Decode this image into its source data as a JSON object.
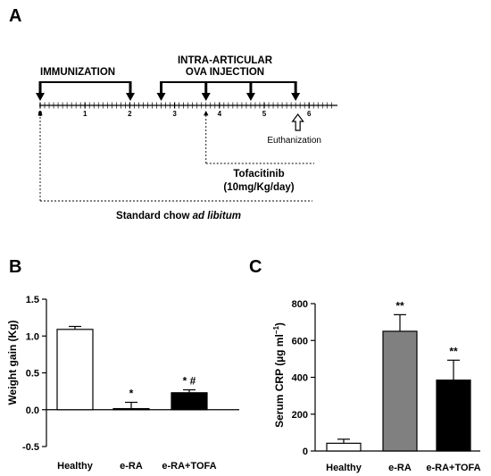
{
  "panelA": {
    "label": "A",
    "immunization": "IMMUNIZATION",
    "injection_line1": "INTRA-ARTICULAR",
    "injection_line2": "OVA INJECTION",
    "euthanization": "Euthanization",
    "tofacitinib_line1": "Tofacitinib",
    "tofacitinib_line2": "(10mg/Kg/day)",
    "chow_prefix": "Standard chow ",
    "chow_italic": "ad libitum",
    "week_ticks": [
      "0",
      "1",
      "2",
      "3",
      "4",
      "5",
      "6"
    ],
    "injection_weeks": [
      2.7,
      3.7,
      4.7,
      5.7
    ],
    "tofacitinib_start_week": 3.7,
    "euthanization_week": 5.75
  },
  "panelB_label": "B",
  "panelC_label": "C",
  "chart_data": [
    {
      "type": "bar",
      "panel": "B",
      "categories": [
        "Healthy",
        "e-RA",
        "e-RA+TOFA"
      ],
      "values": [
        1.09,
        0.01,
        0.23
      ],
      "errors": [
        0.04,
        0.09,
        0.04
      ],
      "fills": [
        "#ffffff",
        "#ffffff",
        "#000000"
      ],
      "annotations": [
        "",
        "*",
        "* #"
      ],
      "ylabel": "Weight gain (Kg)",
      "ylim": [
        -0.5,
        1.5
      ],
      "yticks": [
        -0.5,
        0.0,
        0.5,
        1.0,
        1.5
      ],
      "ytick_labels": [
        "-0.5",
        "0.0",
        "0.5",
        "1.0",
        "1.5"
      ]
    },
    {
      "type": "bar",
      "panel": "C",
      "categories": [
        "Healthy",
        "e-RA",
        "e-RA+TOFA"
      ],
      "values": [
        42,
        650,
        385
      ],
      "errors": [
        22,
        90,
        108
      ],
      "fills": [
        "#ffffff",
        "#808080",
        "#000000"
      ],
      "annotations": [
        "",
        "**",
        "**"
      ],
      "ylabel": "Serum CRP (µg ml",
      "ylabel_sup": "−1",
      "ylabel_end": ")",
      "ylim": [
        0,
        800
      ],
      "yticks": [
        0,
        200,
        400,
        600,
        800
      ],
      "ytick_labels": [
        "0",
        "200",
        "400",
        "600",
        "800"
      ]
    }
  ]
}
